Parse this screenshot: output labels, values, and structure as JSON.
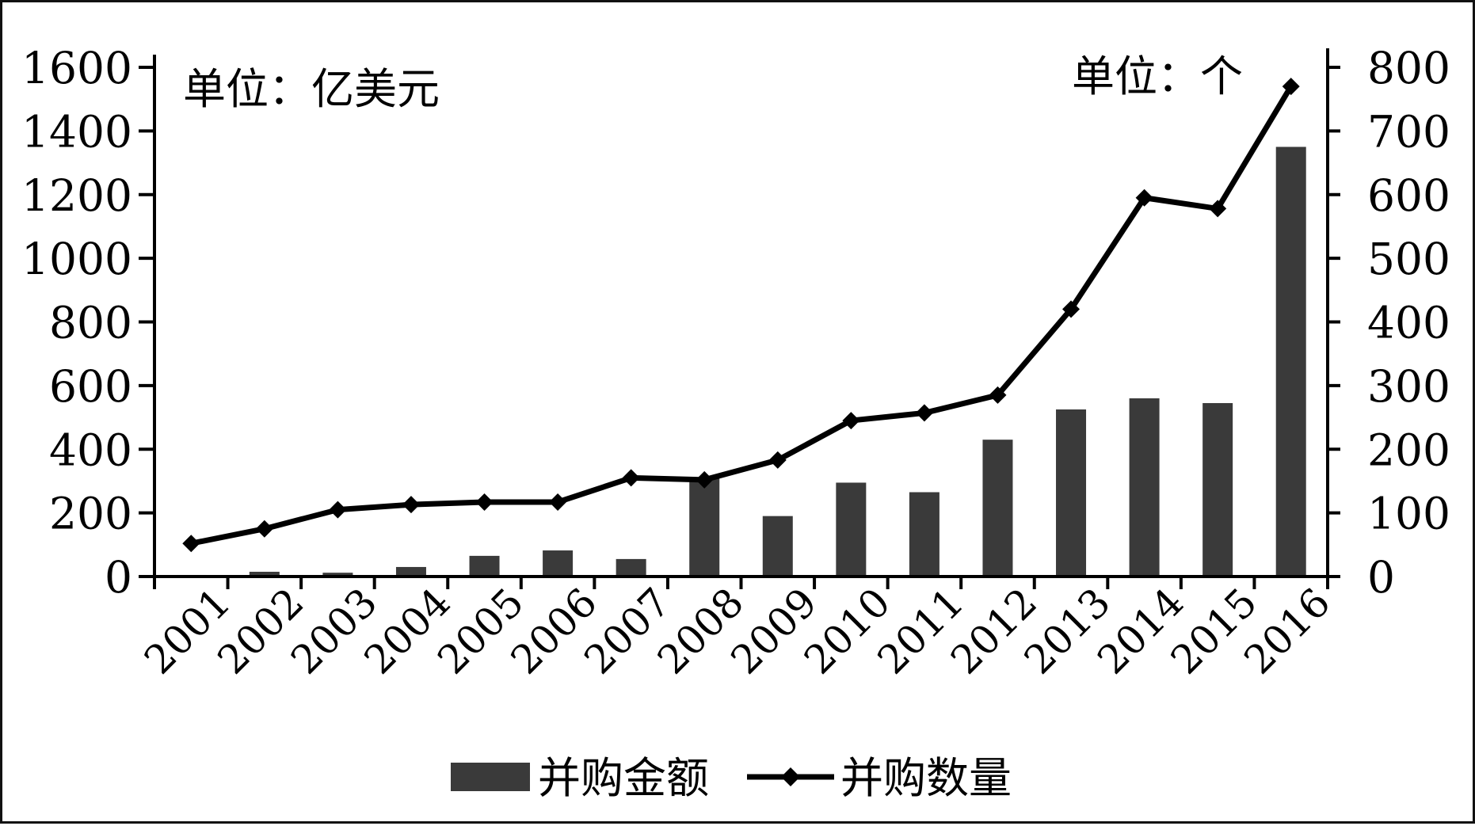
{
  "chart_data": {
    "type": "bar+line",
    "categories": [
      "2001",
      "2002",
      "2003",
      "2004",
      "2005",
      "2006",
      "2007",
      "2008",
      "2009",
      "2010",
      "2011",
      "2012",
      "2013",
      "2014",
      "2015",
      "2016"
    ],
    "series": [
      {
        "name": "并购金额",
        "kind": "bar",
        "axis": "left",
        "color": "#3a3a3a",
        "values": [
          5,
          15,
          12,
          30,
          65,
          82,
          55,
          310,
          190,
          295,
          265,
          430,
          525,
          560,
          545,
          1350
        ]
      },
      {
        "name": "并购数量",
        "kind": "line",
        "axis": "right",
        "color": "#000000",
        "marker": "diamond",
        "values": [
          52,
          75,
          105,
          113,
          117,
          117,
          155,
          152,
          183,
          245,
          257,
          285,
          420,
          595,
          578,
          770
        ]
      }
    ],
    "left_axis": {
      "unit_label": "单位：亿美元",
      "range": [
        0,
        1600
      ],
      "ticks": [
        0,
        200,
        400,
        600,
        800,
        1000,
        1200,
        1400,
        1600
      ]
    },
    "right_axis": {
      "unit_label": "单位：个",
      "range": [
        0,
        800
      ],
      "ticks": [
        0,
        100,
        200,
        300,
        400,
        500,
        600,
        700,
        800
      ]
    },
    "legend": {
      "position": "bottom-center",
      "items": [
        "并购金额",
        "并购数量"
      ]
    },
    "grid": false
  }
}
